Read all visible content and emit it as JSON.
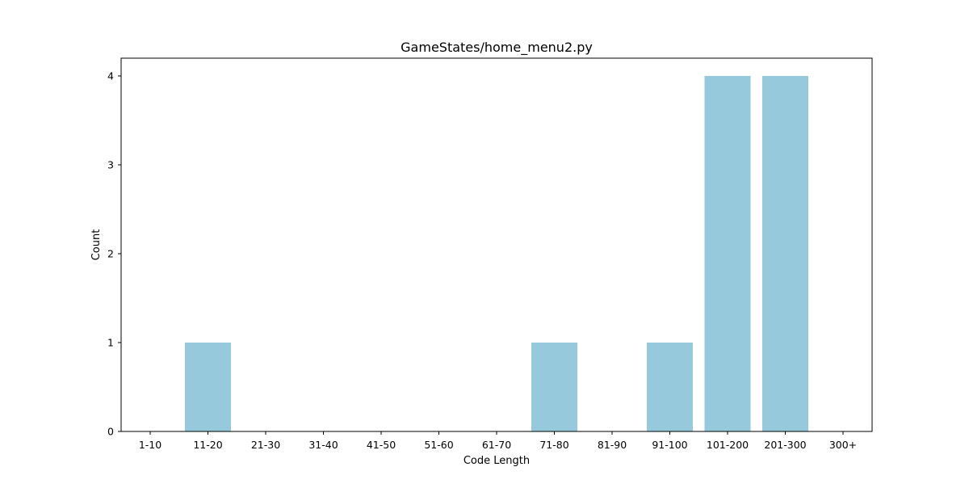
{
  "chart_data": {
    "type": "bar",
    "title": "GameStates/home_menu2.py",
    "xlabel": "Code Length",
    "ylabel": "Count",
    "categories": [
      "1-10",
      "11-20",
      "21-30",
      "31-40",
      "41-50",
      "51-60",
      "61-70",
      "71-80",
      "81-90",
      "91-100",
      "101-200",
      "201-300",
      "300+"
    ],
    "values": [
      0,
      1,
      0,
      0,
      0,
      0,
      0,
      1,
      0,
      1,
      4,
      4,
      0
    ],
    "yticks": [
      0,
      1,
      2,
      3,
      4
    ],
    "ylim": [
      0,
      4.2
    ],
    "grid": false,
    "legend": "none",
    "bar_color": "#96c9dc",
    "axis_color": "#000000"
  }
}
